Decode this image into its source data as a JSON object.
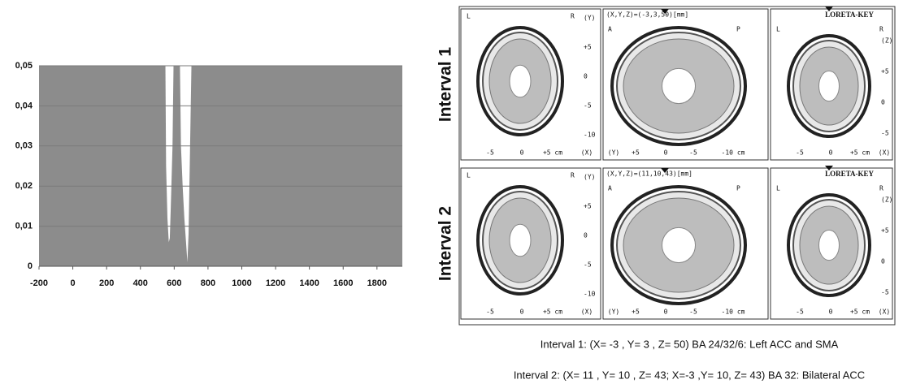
{
  "chart_data": {
    "type": "significance",
    "xlim": [
      -200,
      1950
    ],
    "xticks": [
      -200,
      0,
      200,
      400,
      600,
      800,
      1000,
      1200,
      1400,
      1600,
      1800
    ],
    "ylim": [
      0,
      0.05
    ],
    "yticks": [
      0,
      {
        "value": 0.01,
        "label": "0,01"
      },
      {
        "value": 0.02,
        "label": "0,02"
      },
      {
        "value": 0.03,
        "label": "0,03"
      },
      {
        "value": 0.04,
        "label": "0,04"
      },
      {
        "value": 0.05,
        "label": "0,05"
      }
    ],
    "grid": true,
    "background": "#8c8c8c",
    "color": "#ffffff",
    "series": [
      {
        "x": [
          548,
          552,
          560,
          568,
          574,
          580,
          590,
          596
        ],
        "values": [
          0.05,
          0.025,
          0.012,
          0.006,
          0.007,
          0.015,
          0.03,
          0.05
        ]
      },
      {
        "x": [
          634,
          640,
          650,
          660,
          670,
          678,
          685,
          692,
          702
        ],
        "values": [
          0.05,
          0.03,
          0.02,
          0.012,
          0.006,
          0.001,
          0.008,
          0.025,
          0.05
        ]
      }
    ]
  },
  "brain": {
    "key": "LORETA-KEY",
    "intervals": [
      {
        "name": "Interval 1",
        "coords": "(X,Y,Z)=(-3,3,50)[mm]"
      },
      {
        "name": "Interval 2",
        "coords": "(X,Y,Z)=(11,10,43)[mm]"
      }
    ],
    "axial": {
      "left": "L",
      "right": "R",
      "y_axis": [
        "(Y)",
        "+5",
        "0",
        "-5",
        "-10"
      ],
      "x_axis": [
        "-5",
        "0",
        "+5 cm",
        "(X)"
      ]
    },
    "sagittal": {
      "front": "A",
      "back": "P",
      "x_axis": [
        "(Y)",
        "+5",
        "0",
        "-5",
        "-10 cm"
      ]
    },
    "coronal": {
      "left": "L",
      "right": "R",
      "z_axis": [
        "(Z)",
        "+5",
        "0",
        "-5"
      ],
      "x_axis": [
        "-5",
        "0",
        "+5 cm",
        "(X)"
      ]
    }
  },
  "captions": [
    "Interval 1: (X= -3 , Y= 3 , Z= 50) BA 24/32/6: Left ACC and SMA",
    "Interval 2: (X= 11 , Y= 10 , Z= 43; X=-3 ,Y= 10, Z= 43) BA 32: Bilateral ACC"
  ]
}
